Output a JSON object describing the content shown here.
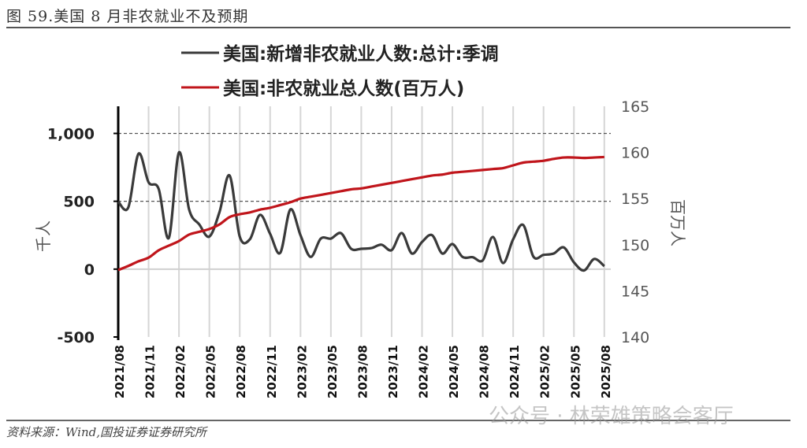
{
  "title": "图 59.美国 8 月非农就业不及预期",
  "source": "资料来源：Wind,国投证券证券研究所",
  "watermark": "公众号 · 林荣雄策略会客厅",
  "chart_data": {
    "type": "line",
    "title": "",
    "legend_position": "top",
    "left_axis": {
      "label": "千人",
      "ylim": [
        -500,
        1200
      ],
      "ticks": [
        -500,
        0,
        500,
        1000
      ],
      "tick_labels": [
        "-500",
        "0",
        "500",
        "1,000"
      ]
    },
    "right_axis": {
      "label": "百万人",
      "ylim": [
        140,
        165
      ],
      "ticks": [
        140,
        145,
        150,
        155,
        160,
        165
      ],
      "tick_labels": [
        "140",
        "145",
        "150",
        "155",
        "160",
        "165"
      ]
    },
    "x_tick_labels": [
      "2021/08",
      "2021/11",
      "2022/02",
      "2022/05",
      "2022/08",
      "2022/11",
      "2023/02",
      "2023/05",
      "2023/08",
      "2023/11",
      "2024/02",
      "2024/05",
      "2024/08",
      "2024/11",
      "2025/02",
      "2025/05",
      "2025/08"
    ],
    "x_start": "2021/08",
    "x_end": "2025/08",
    "grid": {
      "horizontal_dashed_at": [
        500,
        1000
      ],
      "vertical_at_ticks": true
    },
    "series": [
      {
        "name": "美国:新增非农就业人数:总计:季调",
        "axis": "left",
        "color": "#3a3a3a",
        "values": [
          497,
          455,
          850,
          640,
          590,
          230,
          860,
          440,
          330,
          240,
          420,
          690,
          240,
          220,
          400,
          260,
          120,
          440,
          250,
          90,
          225,
          225,
          265,
          150,
          150,
          155,
          180,
          140,
          266,
          115,
          200,
          250,
          115,
          185,
          90,
          88,
          65,
          237,
          45,
          220,
          325,
          92,
          105,
          115,
          160,
          50,
          -10,
          75,
          22
        ]
      },
      {
        "name": "美国:非农就业总人数(百万人)",
        "axis": "right",
        "color": "#c0151b",
        "values": [
          147.25,
          147.7,
          148.2,
          148.6,
          149.4,
          149.9,
          150.4,
          151.1,
          151.4,
          151.7,
          152.2,
          153.0,
          153.3,
          153.5,
          153.8,
          154.0,
          154.3,
          154.6,
          155.0,
          155.2,
          155.4,
          155.6,
          155.8,
          156.0,
          156.1,
          156.3,
          156.5,
          156.7,
          156.9,
          157.1,
          157.3,
          157.5,
          157.6,
          157.8,
          157.9,
          158.0,
          158.1,
          158.2,
          158.3,
          158.6,
          158.9,
          159.0,
          159.1,
          159.3,
          159.45,
          159.45,
          159.4,
          159.45,
          159.5
        ]
      }
    ]
  }
}
